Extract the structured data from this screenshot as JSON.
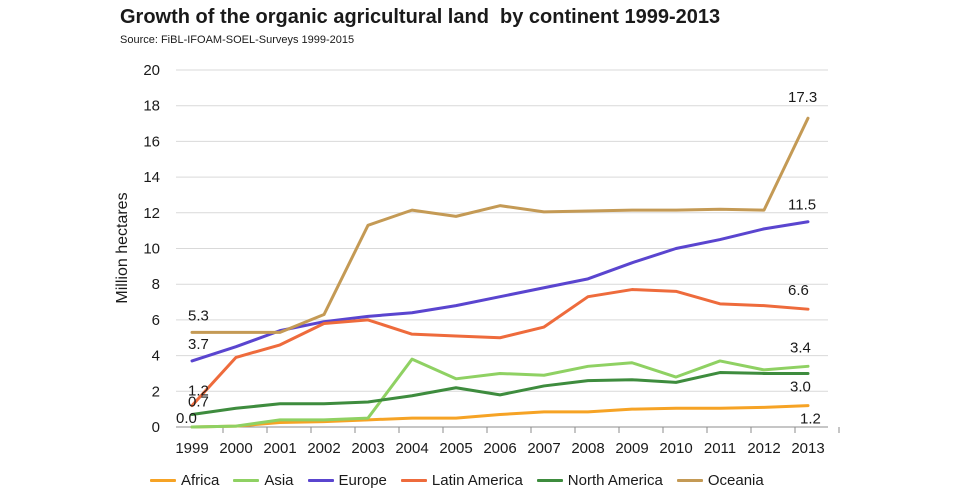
{
  "chart_data": {
    "type": "line",
    "title": "Growth of the organic agricultural land  by continent 1999-2013",
    "subtitle": "Source: FiBL-IFOAM-SOEL-Surveys 1999-2015",
    "xlabel": "",
    "ylabel": "Million hectares",
    "ylim": [
      0,
      20
    ],
    "yticks": [
      0,
      2,
      4,
      6,
      8,
      10,
      12,
      14,
      16,
      18,
      20
    ],
    "x": [
      "1999",
      "2000",
      "2001",
      "2002",
      "2003",
      "2004",
      "2005",
      "2006",
      "2007",
      "2008",
      "2009",
      "2010",
      "2011",
      "2012",
      "2013"
    ],
    "series": [
      {
        "name": "Africa",
        "color": "#F6A325",
        "values": [
          0.0,
          0.05,
          0.25,
          0.3,
          0.4,
          0.5,
          0.5,
          0.7,
          0.85,
          0.85,
          1.0,
          1.05,
          1.05,
          1.1,
          1.2
        ]
      },
      {
        "name": "Asia",
        "color": "#8FD163",
        "values": [
          0.0,
          0.05,
          0.4,
          0.4,
          0.5,
          3.8,
          2.7,
          3.0,
          2.9,
          3.4,
          3.6,
          2.8,
          3.7,
          3.2,
          3.4
        ]
      },
      {
        "name": "Europe",
        "color": "#5A45CF",
        "values": [
          3.7,
          4.5,
          5.4,
          5.9,
          6.2,
          6.4,
          6.8,
          7.3,
          7.8,
          8.3,
          9.2,
          10.0,
          10.5,
          11.1,
          11.5
        ]
      },
      {
        "name": "Latin America",
        "color": "#EE6B3C",
        "values": [
          1.2,
          3.9,
          4.6,
          5.8,
          6.0,
          5.2,
          5.1,
          5.0,
          5.6,
          7.3,
          7.7,
          7.6,
          6.9,
          6.8,
          6.6
        ]
      },
      {
        "name": "North America",
        "color": "#3E8C3E",
        "values": [
          0.7,
          1.05,
          1.3,
          1.3,
          1.4,
          1.75,
          2.2,
          1.8,
          2.3,
          2.6,
          2.65,
          2.5,
          3.05,
          3.0,
          3.0
        ]
      },
      {
        "name": "Oceania",
        "color": "#C49A55",
        "values": [
          5.3,
          5.3,
          5.3,
          6.3,
          11.3,
          12.15,
          11.8,
          12.4,
          12.05,
          12.1,
          12.15,
          12.15,
          12.2,
          12.15,
          17.3
        ]
      }
    ],
    "annotations": [
      {
        "text": "0.0",
        "series": "Africa",
        "index": 0
      },
      {
        "text": "0.7",
        "series": "North America",
        "index": 0
      },
      {
        "text": "1.2",
        "series": "Latin America",
        "index": 0
      },
      {
        "text": "3.7",
        "series": "Europe",
        "index": 0
      },
      {
        "text": "5.3",
        "series": "Oceania",
        "index": 0
      },
      {
        "text": "17.3",
        "series": "Oceania",
        "index": 14
      },
      {
        "text": "11.5",
        "series": "Europe",
        "index": 14
      },
      {
        "text": "6.6",
        "series": "Latin America",
        "index": 14
      },
      {
        "text": "3.4",
        "series": "Asia",
        "index": 14
      },
      {
        "text": "3.0",
        "series": "North America",
        "index": 14
      },
      {
        "text": "1.2",
        "series": "Africa",
        "index": 14
      }
    ],
    "legend_position": "bottom"
  }
}
